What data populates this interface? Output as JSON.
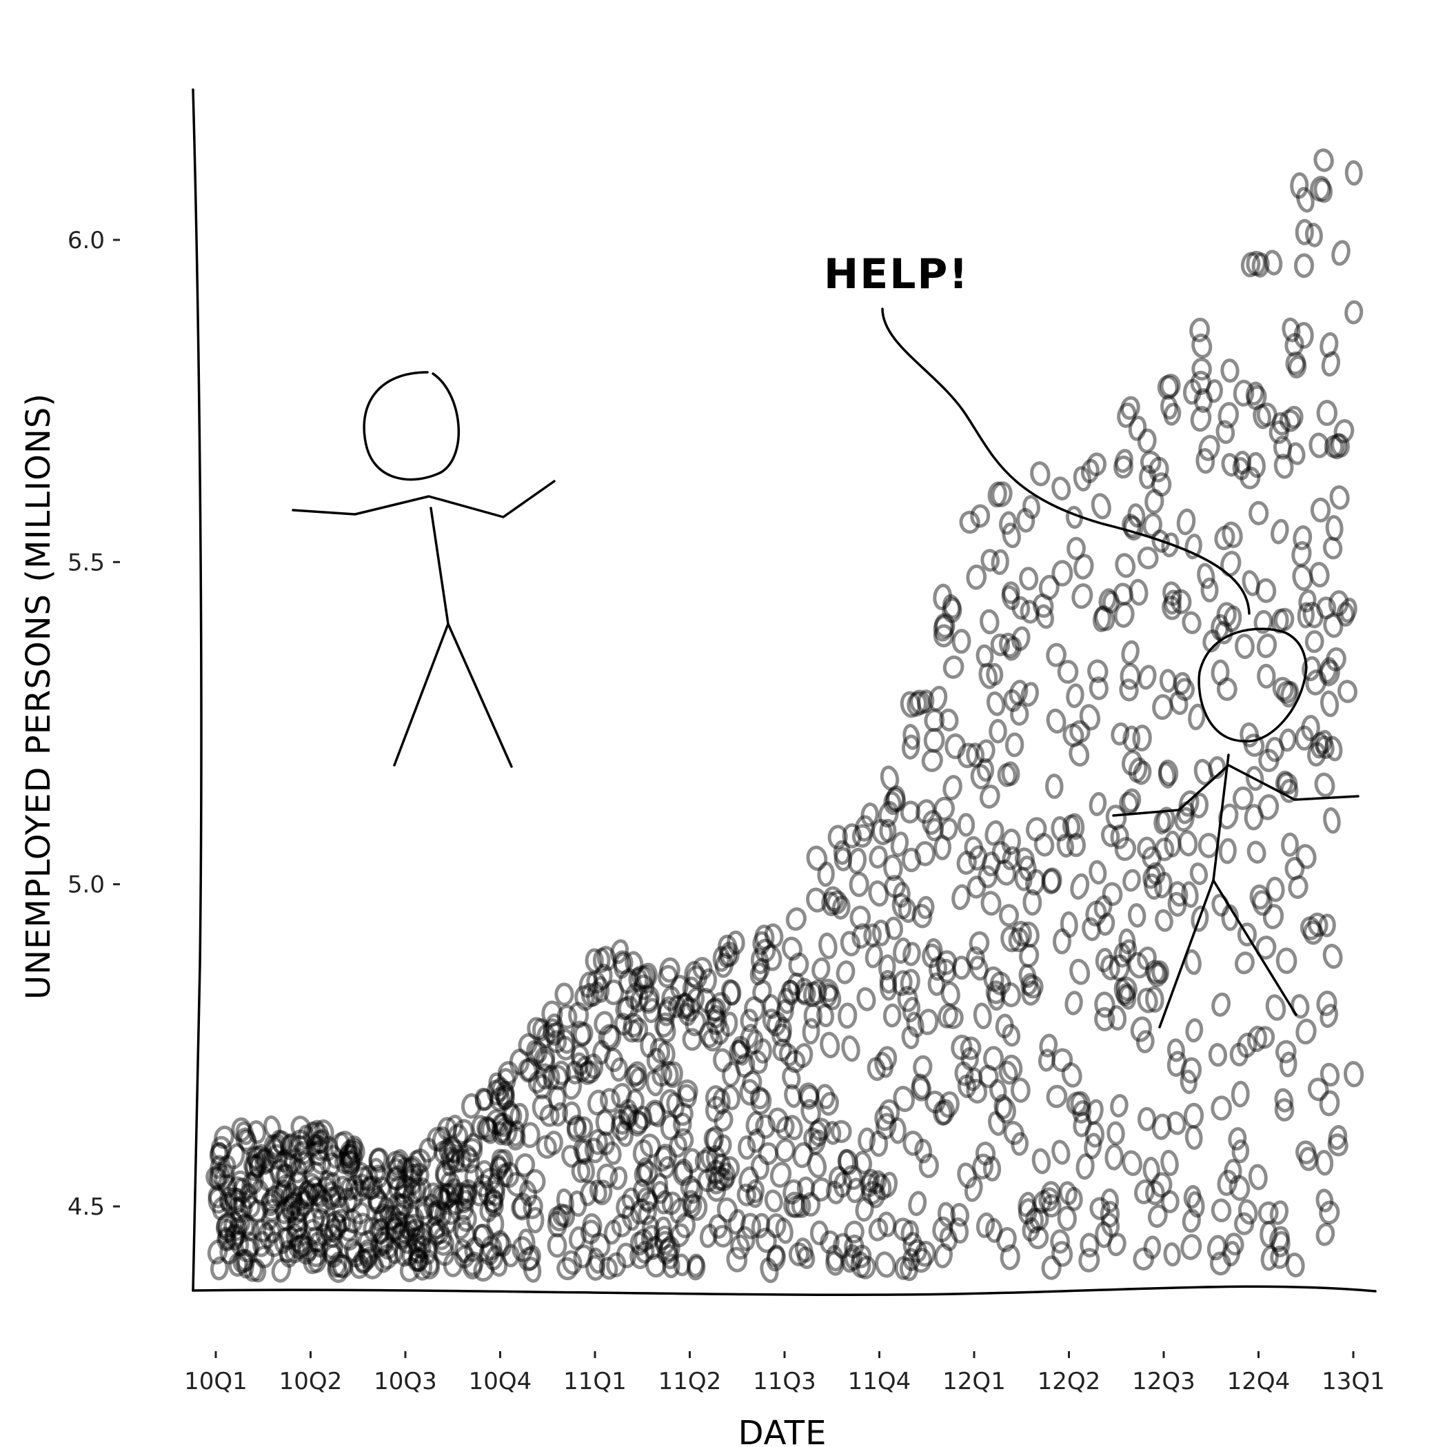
{
  "chart_data": {
    "type": "scatter",
    "title": "",
    "xlabel": "DATE",
    "ylabel": "UNEMPLOYED PERSONS (MILLIONS)",
    "x_ticks": [
      "10Q1",
      "10Q2",
      "10Q3",
      "10Q4",
      "11Q1",
      "11Q2",
      "11Q3",
      "11Q4",
      "12Q1",
      "12Q2",
      "12Q3",
      "12Q4",
      "13Q1"
    ],
    "y_ticks": [
      "4.5",
      "5.0",
      "5.5",
      "6.0"
    ],
    "xlim": [
      "10Q1",
      "13Q1"
    ],
    "ylim": [
      4.4,
      6.2
    ],
    "grid": false,
    "legend": "none",
    "marker_color": "#000000",
    "marker_opacity": 0.45,
    "series": [
      {
        "points_description": "dense cloud of hand-drawn circles; lower bound about 4.4, upper envelope rises over time",
        "upper_envelope": [
          {
            "x": "10Q1",
            "y": 4.62
          },
          {
            "x": "10Q2",
            "y": 4.63
          },
          {
            "x": "10Q3",
            "y": 4.57
          },
          {
            "x": "10Q4",
            "y": 4.7
          },
          {
            "x": "11Q1",
            "y": 4.92
          },
          {
            "x": "11Q2",
            "y": 4.86
          },
          {
            "x": "11Q3",
            "y": 4.99
          },
          {
            "x": "11Q4",
            "y": 5.15
          },
          {
            "x": "12Q1",
            "y": 5.6
          },
          {
            "x": "12Q2",
            "y": 5.68
          },
          {
            "x": "12Q3",
            "y": 5.78
          },
          {
            "x": "12Q4",
            "y": 6.02
          },
          {
            "x": "13Q1",
            "y": 6.22
          }
        ],
        "lower_bound": 4.4
      }
    ],
    "annotations": [
      "HELP!"
    ]
  }
}
